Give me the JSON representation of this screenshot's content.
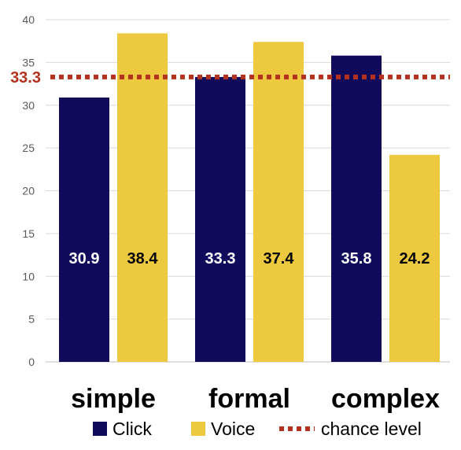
{
  "chart_data": {
    "type": "bar",
    "categories": [
      "simple",
      "formal",
      "complex"
    ],
    "series": [
      {
        "name": "Click",
        "values": [
          30.9,
          33.3,
          35.8
        ],
        "color": "#110b5c"
      },
      {
        "name": "Voice",
        "values": [
          38.4,
          37.4,
          24.2
        ],
        "color": "#edc940"
      }
    ],
    "data_labels": [
      [
        "30.9",
        "33.3",
        "35.8"
      ],
      [
        "38.4",
        "37.4",
        "24.2"
      ]
    ],
    "data_label_colors": [
      "#ffffff",
      "#000000"
    ],
    "reference_line": {
      "name": "chance level",
      "value": 33.3,
      "label": "33.3",
      "color": "#b5311f",
      "style": "dotted"
    },
    "ylim": [
      0,
      40
    ],
    "yticks": [
      0,
      5,
      10,
      15,
      20,
      25,
      30,
      35,
      40
    ],
    "ytick_labels": [
      "0",
      "5",
      "10",
      "15",
      "20",
      "25",
      "30",
      "35",
      "40"
    ],
    "title": "",
    "xlabel": "",
    "ylabel": "",
    "grid": true,
    "legend_position": "bottom"
  }
}
